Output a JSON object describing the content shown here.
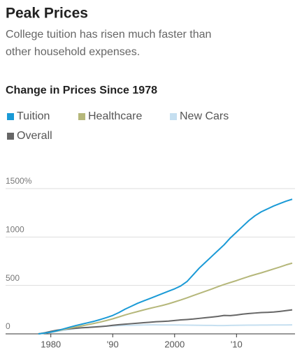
{
  "chart_data": {
    "type": "line",
    "title": "Peak Prices",
    "subtitle": [
      "College tuition has risen much faster than",
      "other household expenses."
    ],
    "chart_title": "Change in Prices Since 1978",
    "x": [
      1978,
      1979,
      1980,
      1981,
      1982,
      1983,
      1984,
      1985,
      1986,
      1987,
      1988,
      1989,
      1990,
      1991,
      1992,
      1993,
      1994,
      1995,
      1996,
      1997,
      1998,
      1999,
      2000,
      2001,
      2002,
      2003,
      2004,
      2005,
      2006,
      2007,
      2008,
      2009,
      2010,
      2011,
      2012,
      2013,
      2014,
      2015,
      2016,
      2017,
      2018,
      2019
    ],
    "series": [
      {
        "name": "Tuition",
        "color": "#1a9ad6",
        "values": [
          0,
          8,
          18,
          32,
          50,
          68,
          85,
          100,
          115,
          130,
          148,
          168,
          190,
          220,
          255,
          285,
          315,
          340,
          365,
          390,
          415,
          440,
          465,
          495,
          540,
          610,
          680,
          740,
          800,
          860,
          920,
          990,
          1050,
          1110,
          1170,
          1220,
          1260,
          1290,
          1320,
          1345,
          1370,
          1390
        ]
      },
      {
        "name": "Healthcare",
        "color": "#b5b77a",
        "values": [
          0,
          8,
          18,
          30,
          45,
          58,
          70,
          82,
          95,
          108,
          122,
          138,
          155,
          175,
          195,
          213,
          230,
          247,
          263,
          278,
          293,
          310,
          330,
          350,
          372,
          395,
          418,
          440,
          463,
          487,
          510,
          530,
          550,
          572,
          593,
          612,
          630,
          650,
          670,
          690,
          712,
          730
        ]
      },
      {
        "name": "New Cars",
        "color": "#c5dff0",
        "values": [
          0,
          7,
          15,
          25,
          35,
          45,
          55,
          62,
          68,
          73,
          77,
          80,
          83,
          85,
          87,
          88,
          90,
          92,
          93,
          93,
          92,
          92,
          92,
          91,
          90,
          89,
          88,
          87,
          87,
          86,
          86,
          87,
          88,
          89,
          90,
          90,
          91,
          91,
          92,
          92,
          92,
          93
        ]
      },
      {
        "name": "Overall",
        "color": "#666666",
        "values": [
          0,
          11,
          25,
          38,
          47,
          52,
          58,
          63,
          66,
          70,
          75,
          80,
          88,
          95,
          100,
          105,
          110,
          115,
          120,
          125,
          128,
          132,
          138,
          144,
          148,
          153,
          160,
          167,
          173,
          180,
          190,
          188,
          195,
          204,
          210,
          215,
          220,
          222,
          225,
          232,
          240,
          248
        ]
      }
    ],
    "xlim": [
      1978,
      2019
    ],
    "xticks": [
      1980,
      {
        "value": 1990,
        "label": "'90"
      },
      2000,
      {
        "value": 2010,
        "label": "'10"
      }
    ],
    "ylim": [
      0,
      1500
    ],
    "yticks": [
      0,
      500,
      1000,
      {
        "value": 1500,
        "label": "1500%"
      }
    ],
    "grid": true
  }
}
